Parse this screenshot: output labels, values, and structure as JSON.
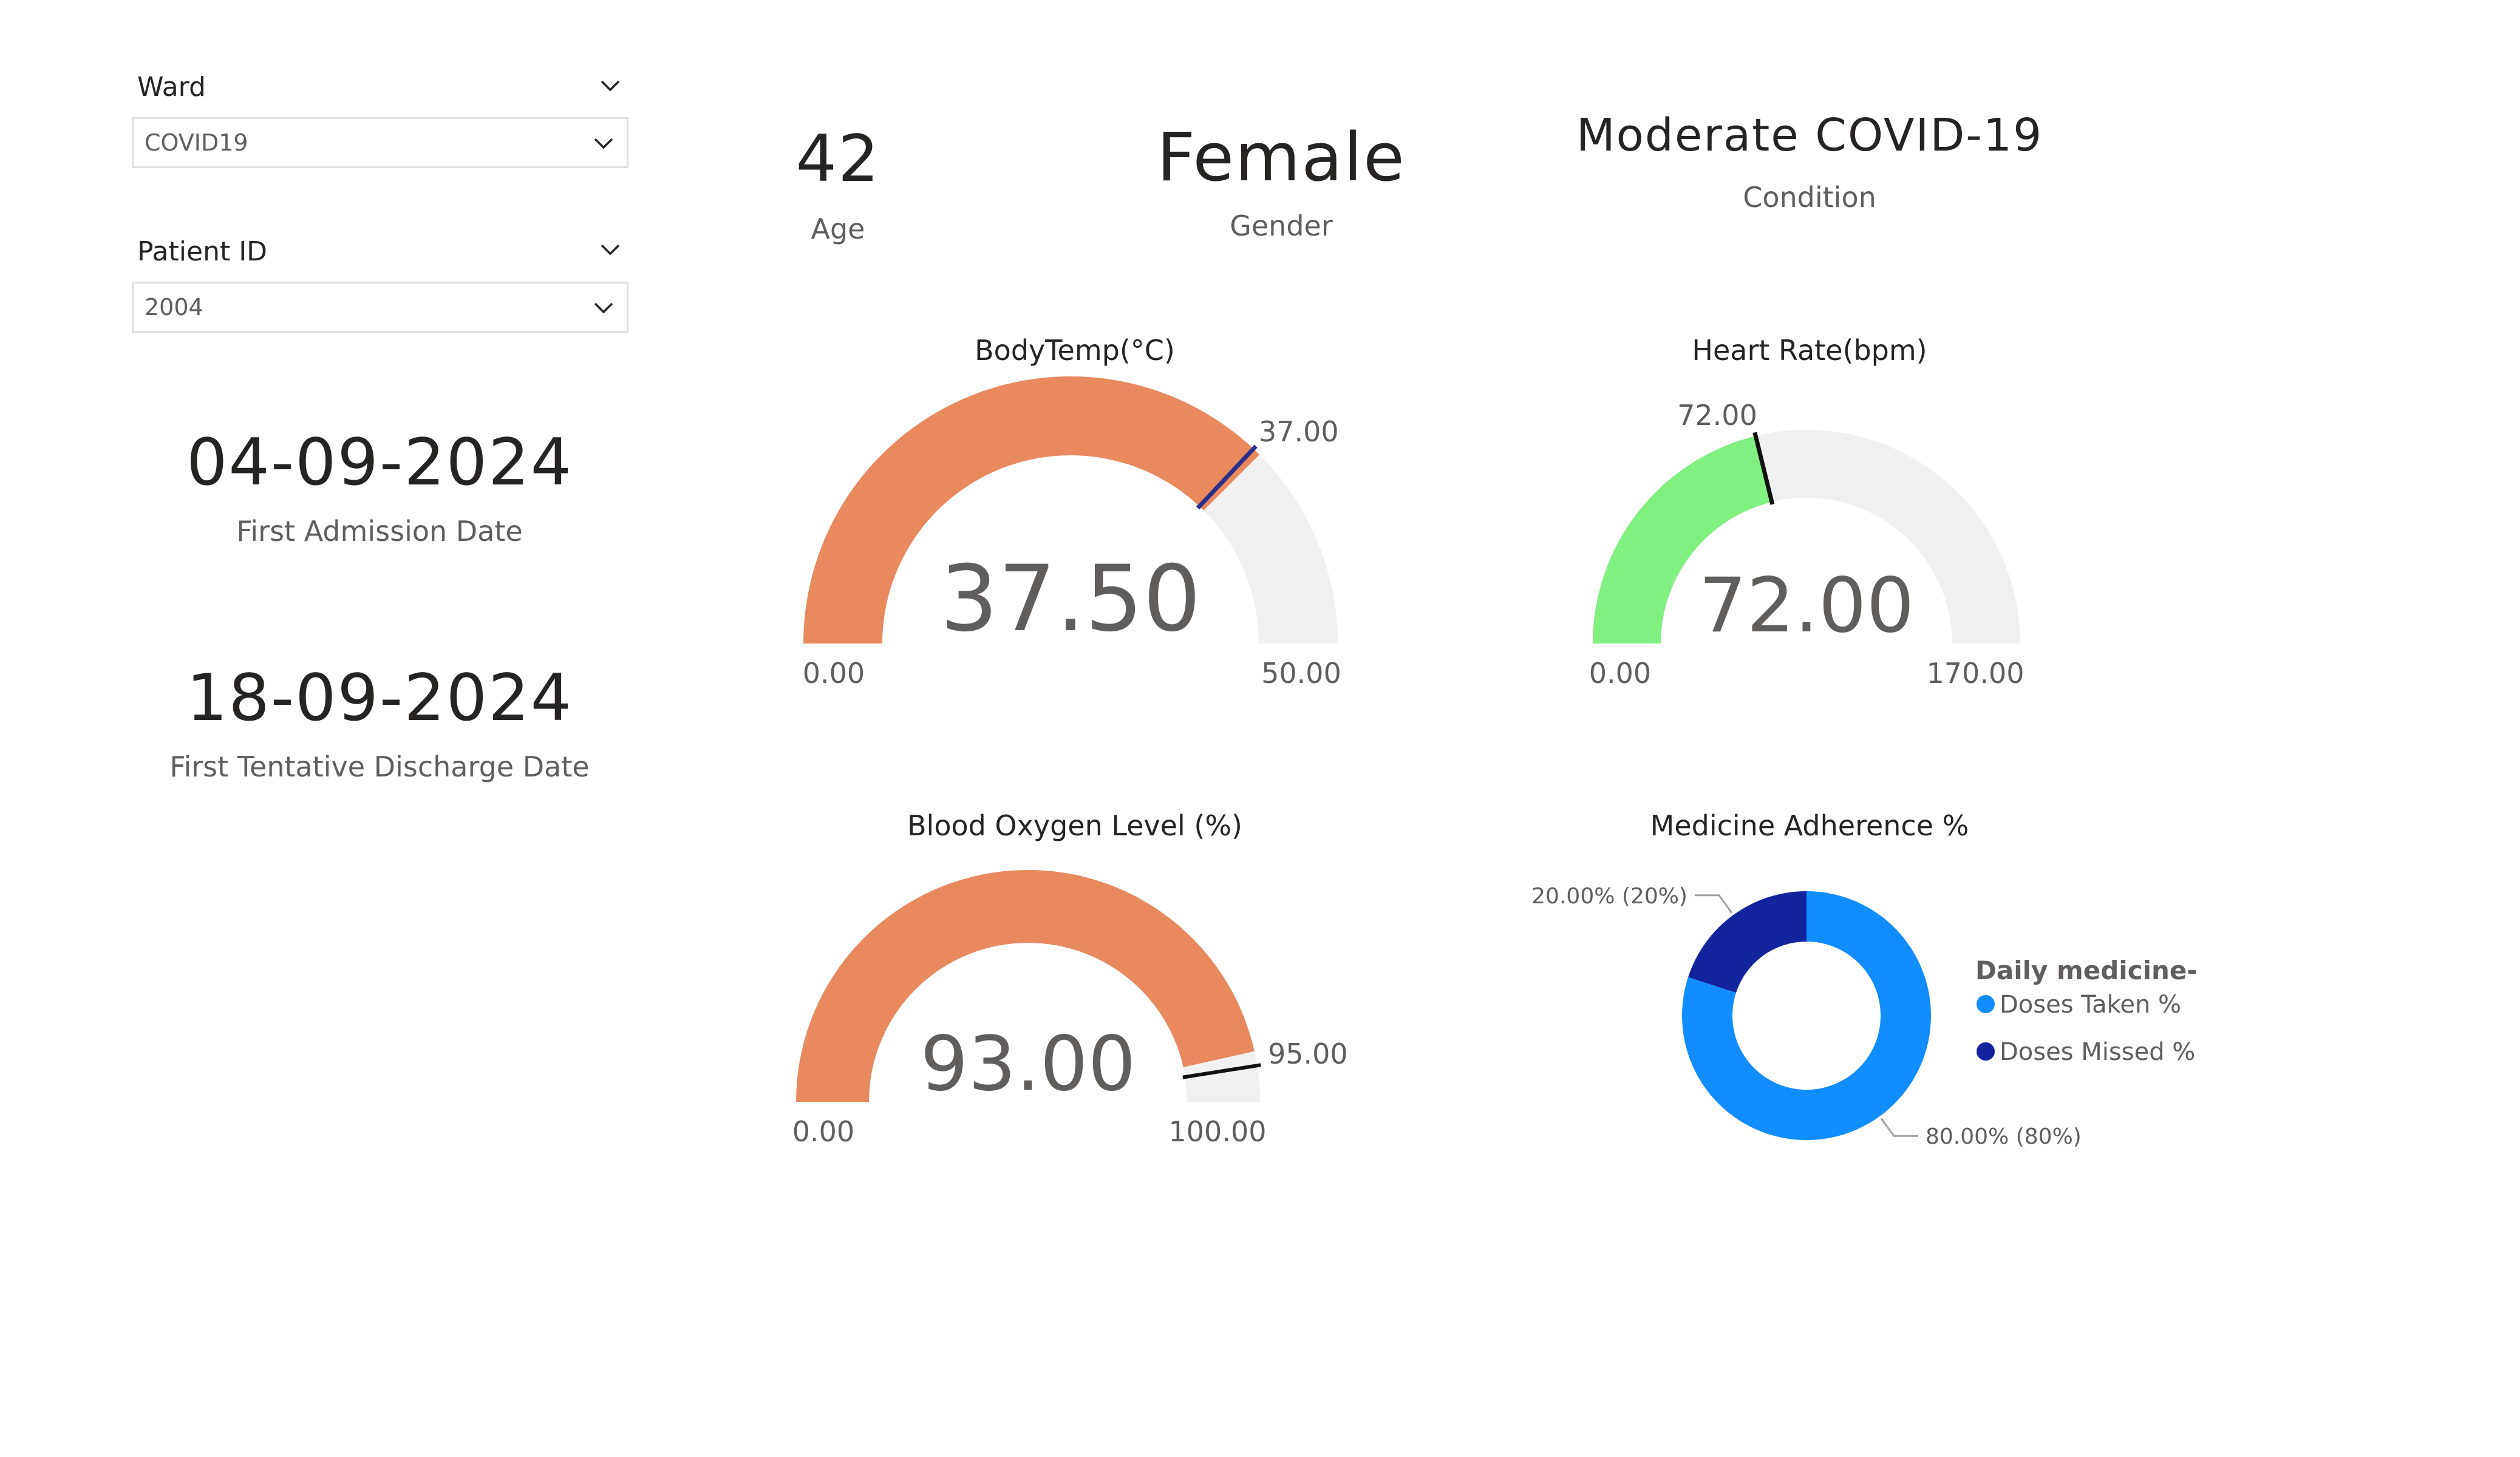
{
  "slicers": {
    "ward": {
      "title": "Ward",
      "value": "COVID19"
    },
    "patient": {
      "title": "Patient ID",
      "value": "2004"
    }
  },
  "dates": {
    "admission": {
      "value": "04-09-2024",
      "label": "First Admission Date"
    },
    "discharge": {
      "value": "18-09-2024",
      "label": "First Tentative Discharge Date"
    }
  },
  "cards": {
    "age": {
      "value": "42",
      "label": "Age"
    },
    "gender": {
      "value": "Female",
      "label": "Gender"
    },
    "condition": {
      "value": "Moderate COVID-19",
      "label": "Condition"
    }
  },
  "gauges": {
    "body_temp": {
      "title": "BodyTemp(°C)",
      "value": 37.5,
      "value_label": "37.50",
      "min": 0,
      "min_label": "0.00",
      "max": 50,
      "max_label": "50.00",
      "target": 37,
      "target_label": "37.00",
      "fill_color": "#e8895e",
      "track_color": "#f0f0f0",
      "target_color": "#2b2f8a"
    },
    "heart_rate": {
      "title": "Heart Rate(bpm)",
      "value": 72,
      "value_label": "72.00",
      "min": 0,
      "min_label": "0.00",
      "max": 170,
      "max_label": "170.00",
      "target": 72,
      "target_label": "72.00",
      "fill_color": "#80f080",
      "track_color": "#f0f0f0",
      "target_color": "#111111"
    },
    "blood_oxygen": {
      "title": "Blood Oxygen Level (%)",
      "value": 93,
      "value_label": "93.00",
      "min": 0,
      "min_label": "0.00",
      "max": 100,
      "max_label": "100.00",
      "target": 95,
      "target_label": "95.00",
      "fill_color": "#e8895e",
      "track_color": "#f0f0f0",
      "target_color": "#111111"
    }
  },
  "chart_data": {
    "type": "pie",
    "title": "Medicine Adherence %",
    "legend_title": "Daily medicine-",
    "legend_position": "right",
    "categories": [
      "Doses Taken %",
      "Doses Missed %"
    ],
    "values": [
      80,
      20
    ],
    "data_labels": [
      "80.00% (80%)",
      "20.00% (20%)"
    ],
    "colors": [
      "#118dff",
      "#12239e"
    ]
  }
}
